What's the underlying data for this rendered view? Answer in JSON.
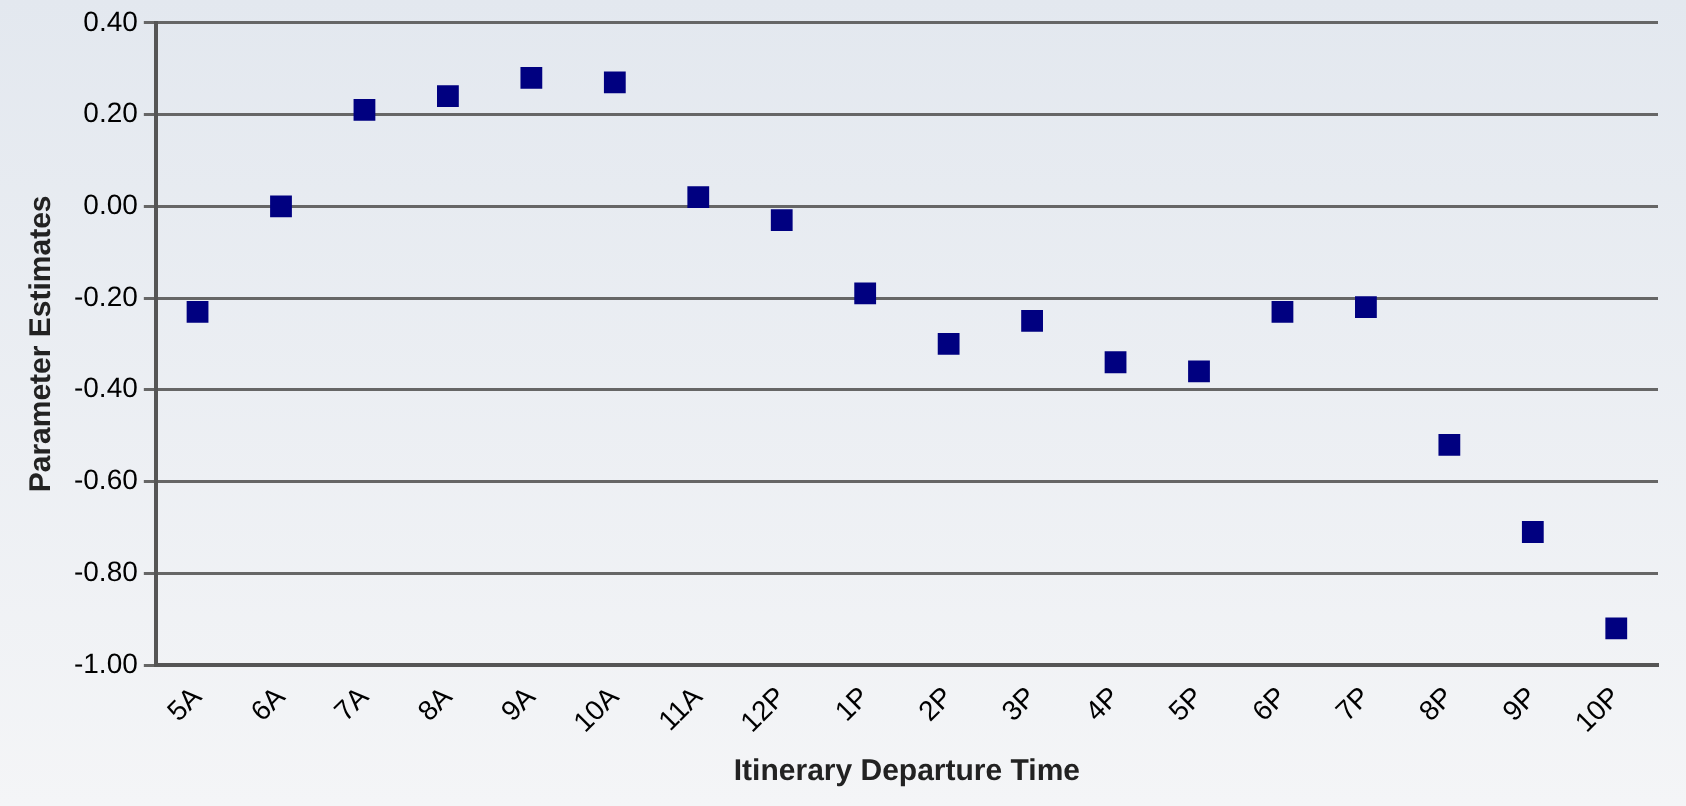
{
  "chart_data": {
    "type": "scatter",
    "xlabel": "Itinerary Departure Time",
    "ylabel": "Parameter Estimates",
    "categories": [
      "5A",
      "6A",
      "7A",
      "8A",
      "9A",
      "10A",
      "11A",
      "12P",
      "1P",
      "2P",
      "3P",
      "4P",
      "5P",
      "6P",
      "7P",
      "8P",
      "9P",
      "10P"
    ],
    "series": [
      {
        "color": "#000080",
        "values": [
          -0.23,
          0.0,
          0.21,
          0.24,
          0.28,
          0.27,
          0.02,
          -0.03,
          -0.19,
          -0.3,
          -0.25,
          -0.34,
          -0.36,
          -0.23,
          -0.22,
          -0.52,
          -0.71,
          -0.92
        ]
      }
    ],
    "ylim": [
      -1.0,
      0.4
    ],
    "yticks": [
      {
        "value": -1.0,
        "label": "-1.00"
      },
      {
        "value": -0.8,
        "label": "-0.80"
      },
      {
        "value": -0.6,
        "label": "-0.60"
      },
      {
        "value": -0.4,
        "label": "-0.40"
      },
      {
        "value": -0.2,
        "label": "-0.20"
      },
      {
        "value": 0,
        "label": "0.00"
      },
      {
        "value": 0.2,
        "label": "0.20"
      },
      {
        "value": 0.4,
        "label": "0.40"
      }
    ],
    "grid": "y",
    "legend": false,
    "marker": "square"
  }
}
